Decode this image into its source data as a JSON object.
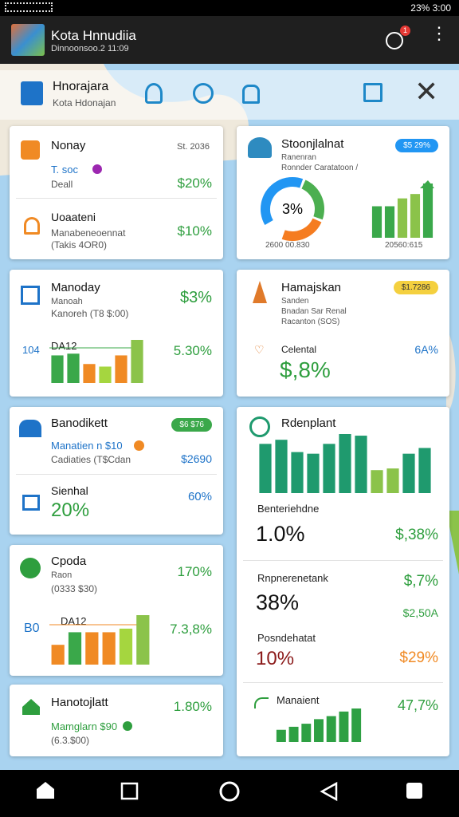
{
  "status_bar": {
    "status": "23% 3:00"
  },
  "app_bar": {
    "title": "Kota Hnnudiia",
    "subtitle": "Dinnoonsoo.2 11:09",
    "badge": "1"
  },
  "header": {
    "title": "Hnorajara",
    "subtitle": "Kota Hdonajan"
  },
  "left_cards": [
    {
      "title": "Nonay",
      "date": "St. 2036",
      "tag": "T. soc",
      "label": "Deall",
      "value": "$20%",
      "title2": "Uoaateni",
      "sub2a": "Manabeneoennat",
      "sub2b": "(Takis 4OR0)",
      "value2": "$10%"
    },
    {
      "title": "Manoday",
      "sub1": "Manoah",
      "sub2": "Kanoreh (T8 $:00)",
      "value": "$3%",
      "chart_label": "DA12",
      "axis_label": "104",
      "chart_value": "5.30%",
      "chart": {
        "values": [
          32,
          34,
          22,
          19,
          32,
          50
        ],
        "colors": [
          "#3aa84a",
          "#3aa84a",
          "#f08a24",
          "#a5d63f",
          "#f08a24",
          "#8bc34a"
        ]
      }
    },
    {
      "title": "Banodikett",
      "badge": "$6 $76",
      "line1": "Manatien n $10",
      "line2": "Cadiaties (T$Cdan",
      "value": "$2690",
      "title2": "Sienhal",
      "big": "20%",
      "value2": "60%"
    },
    {
      "title": "Cpoda",
      "sub1": "Raon",
      "sub2": "(0333 $30)",
      "value": "170%",
      "chart_label": "DA12",
      "axis_label": "B0",
      "chart_value": "7.3,8%",
      "chart": {
        "values": [
          22,
          36,
          36,
          36,
          40,
          55
        ],
        "colors": [
          "#f08a24",
          "#3aa84a",
          "#f08a24",
          "#f08a24",
          "#a5d63f",
          "#8bc34a"
        ]
      }
    },
    {
      "title": "Hanotojlatt",
      "line1": "Mamglarn $90",
      "line2": "(6.3.$00)",
      "value": "1.80%"
    }
  ],
  "right_cards": [
    {
      "title": "Stoonjlalnat",
      "badge": "$5 29%",
      "sub1": "Ranenran",
      "sub2": "Ronnder Caratatoon /",
      "donut_label": "3%",
      "donut_caption": "2600 00.830",
      "chart_caption": "20560:615",
      "donut": {
        "values": [
          40,
          25,
          25
        ],
        "colors": [
          "#2196f3",
          "#4caf50",
          "#f57c20"
        ]
      },
      "chart": {
        "values": [
          36,
          36,
          45,
          50,
          62
        ],
        "colors": [
          "#3aa84a",
          "#3aa84a",
          "#8bc34a",
          "#8bc34a",
          "#3aa84a"
        ]
      }
    },
    {
      "title": "Hamajskan",
      "badge": "$1.7286",
      "sub1": "Sanden",
      "sub2": "Bnadan Sar Renal",
      "sub3": "Racanton (SOS)",
      "label": "Celental",
      "value": "6A%",
      "big": "$,8%"
    },
    {
      "title": "Rdenplant",
      "chart": {
        "values": [
          60,
          65,
          50,
          48,
          60,
          72,
          70,
          28,
          30,
          48,
          55
        ],
        "colors": [
          "#1f9a6e",
          "#1f9a6e",
          "#1f9a6e",
          "#1f9a6e",
          "#1f9a6e",
          "#1f9a6e",
          "#1f9a6e",
          "#8bc34a",
          "#8bc34a",
          "#1f9a6e",
          "#1f9a6e"
        ]
      },
      "rows": [
        {
          "label": "Benteriehdne",
          "big": "1.0%",
          "value": "$,38%"
        },
        {
          "label": "Rnpnerenetank",
          "big": "38%",
          "value": "$,7%",
          "value2": "$2,50A"
        },
        {
          "label": "Posndehatat",
          "big": "10%",
          "value": "$29%"
        }
      ],
      "footer_label": "Manaient",
      "footer_value": "47,7%",
      "chart2": {
        "values": [
          16,
          20,
          24,
          30,
          34,
          40,
          44
        ],
        "colors": [
          "#2ea043",
          "#2ea043",
          "#2ea043",
          "#2ea043",
          "#2ea043",
          "#2ea043",
          "#2ea043"
        ]
      }
    }
  ]
}
